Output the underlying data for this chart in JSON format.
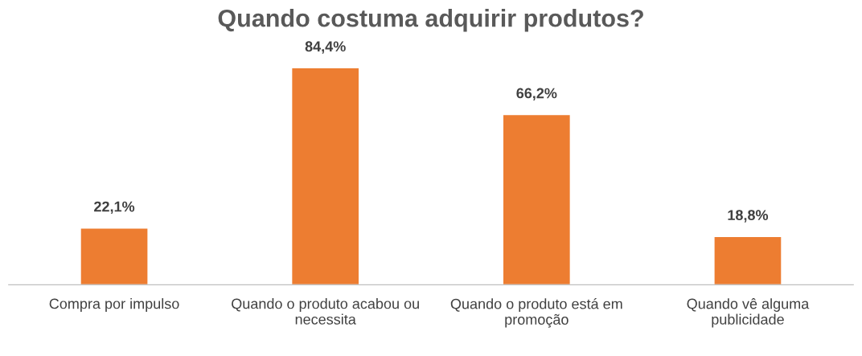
{
  "chart_data": {
    "type": "bar",
    "title": "Quando costuma adquirir produtos?",
    "categories": [
      "Compra por impulso",
      "Quando o produto acabou ou necessita",
      "Quando o produto está em promoção",
      "Quando vê alguma publicidade"
    ],
    "values": [
      22.1,
      84.4,
      66.2,
      18.8
    ],
    "value_labels": [
      "22,1%",
      "84,4%",
      "66,2%",
      "18,8%"
    ],
    "color": "#ed7d31"
  }
}
